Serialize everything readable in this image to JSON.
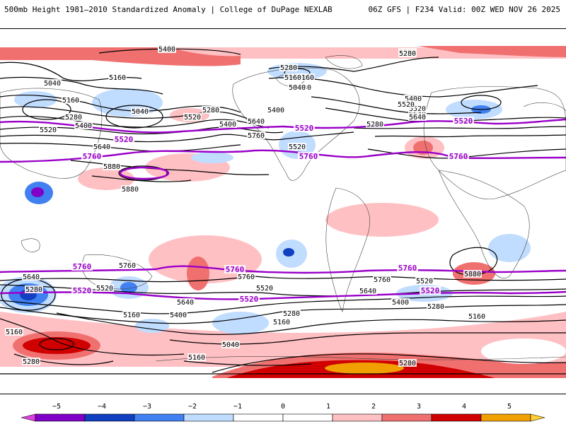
{
  "header": {
    "title_left": "500mb Height 1981–2010 Standardized Anomaly | College of DuPage NEXLAB",
    "title_right": "06Z GFS | F234 Valid: 00Z WED NOV 26 2025"
  },
  "map": {
    "type": "contour-map",
    "contour_labels": [
      {
        "id": "nh-5400-a",
        "text": "5400"
      },
      {
        "id": "nh-5280-a",
        "text": "5280"
      },
      {
        "id": "nh-5160-a",
        "text": "5160"
      },
      {
        "id": "nh-5040-a",
        "text": "5040"
      },
      {
        "id": "nh-5160-b",
        "text": "5160"
      },
      {
        "id": "nh-5040-b",
        "text": "5040"
      },
      {
        "id": "nh-5280-b",
        "text": "5280"
      },
      {
        "id": "nh-5400-b",
        "text": "5400"
      },
      {
        "id": "nh-5520-a",
        "text": "5520"
      },
      {
        "id": "nh-5640-a",
        "text": "5640"
      },
      {
        "id": "nh-5880-a",
        "text": "5880"
      },
      {
        "id": "nh-5880-b",
        "text": "5880"
      },
      {
        "id": "nh-5520-b",
        "text": "5520"
      },
      {
        "id": "nh-5280-c",
        "text": "5280"
      },
      {
        "id": "nh-5400-c",
        "text": "5400"
      },
      {
        "id": "nh-5640-b",
        "text": "5640"
      },
      {
        "id": "nh-5760-a",
        "text": "5760"
      },
      {
        "id": "nh-5160-c",
        "text": "5160"
      },
      {
        "id": "nh-5280-d",
        "text": "5280"
      },
      {
        "id": "nh-5400-d",
        "text": "5400"
      },
      {
        "id": "nh-5520-c",
        "text": "5520"
      },
      {
        "id": "nh-5640-c",
        "text": "5640"
      },
      {
        "id": "nh-5280-e",
        "text": "5280"
      },
      {
        "id": "nh-5400-e",
        "text": "5400"
      },
      {
        "id": "nh-5520-d",
        "text": "5520"
      },
      {
        "id": "nh-5280-f",
        "text": "5280"
      },
      {
        "id": "nh-5160-d",
        "text": "5160"
      },
      {
        "id": "nh-5040-c",
        "text": "5040"
      },
      {
        "id": "nh-5520-e",
        "text": "5520"
      },
      {
        "id": "nh-5640-d",
        "text": "5640"
      },
      {
        "id": "nh-5280-g",
        "text": "5280"
      },
      {
        "id": "nh-5400-f",
        "text": "5400"
      },
      {
        "id": "sh-5760-a",
        "text": "5760"
      },
      {
        "id": "sh-5640-a",
        "text": "5640"
      },
      {
        "id": "sh-5280-a",
        "text": "5280"
      },
      {
        "id": "sh-5520-a",
        "text": "5520"
      },
      {
        "id": "sh-5160-a",
        "text": "5160"
      },
      {
        "id": "sh-5160-b",
        "text": "5160"
      },
      {
        "id": "sh-5400-a",
        "text": "5400"
      },
      {
        "id": "sh-5640-b",
        "text": "5640"
      },
      {
        "id": "sh-5760-b",
        "text": "5760"
      },
      {
        "id": "sh-5520-b",
        "text": "5520"
      },
      {
        "id": "sh-5280-b",
        "text": "5280"
      },
      {
        "id": "sh-5160-c",
        "text": "5160"
      },
      {
        "id": "sh-5040-a",
        "text": "5040"
      },
      {
        "id": "sh-5160-d",
        "text": "5160"
      },
      {
        "id": "sh-5280-c",
        "text": "5280"
      },
      {
        "id": "sh-5640-c",
        "text": "5640"
      },
      {
        "id": "sh-5760-c",
        "text": "5760"
      },
      {
        "id": "sh-5400-b",
        "text": "5400"
      },
      {
        "id": "sh-5520-c",
        "text": "5520"
      },
      {
        "id": "sh-5280-d",
        "text": "5280"
      },
      {
        "id": "sh-5880-a",
        "text": "5880"
      },
      {
        "id": "sh-5160-e",
        "text": "5160"
      },
      {
        "id": "sh-5280-e",
        "text": "5280"
      }
    ],
    "highlight_labels": [
      {
        "id": "nh-5520-w",
        "text": "5520"
      },
      {
        "id": "nh-5760-w",
        "text": "5760"
      },
      {
        "id": "nh-5520-m",
        "text": "5520"
      },
      {
        "id": "nh-5760-m",
        "text": "5760"
      },
      {
        "id": "nh-5520-e",
        "text": "5520"
      },
      {
        "id": "nh-5760-e",
        "text": "5760"
      },
      {
        "id": "sh-5760-w",
        "text": "5760"
      },
      {
        "id": "sh-5760-m",
        "text": "5760"
      },
      {
        "id": "sh-5760-e",
        "text": "5760"
      },
      {
        "id": "sh-5520-w",
        "text": "5520"
      },
      {
        "id": "sh-5520-m",
        "text": "5520"
      },
      {
        "id": "sh-5520-e",
        "text": "5520"
      }
    ],
    "colors": {
      "contour": "#000000",
      "highlight": "#9a00c8",
      "land_outline": "#444444"
    }
  },
  "colorbar": {
    "ticks": [
      "−5",
      "−4",
      "−3",
      "−2",
      "−1",
      "0",
      "1",
      "2",
      "3",
      "4",
      "5"
    ],
    "colors": [
      "#e040e0",
      "#8000c8",
      "#1040c0",
      "#4080f0",
      "#c0dcff",
      "#ffffff",
      "#ffffff",
      "#ffc0c4",
      "#f07070",
      "#d00000",
      "#f0a000",
      "#ffd030"
    ]
  }
}
